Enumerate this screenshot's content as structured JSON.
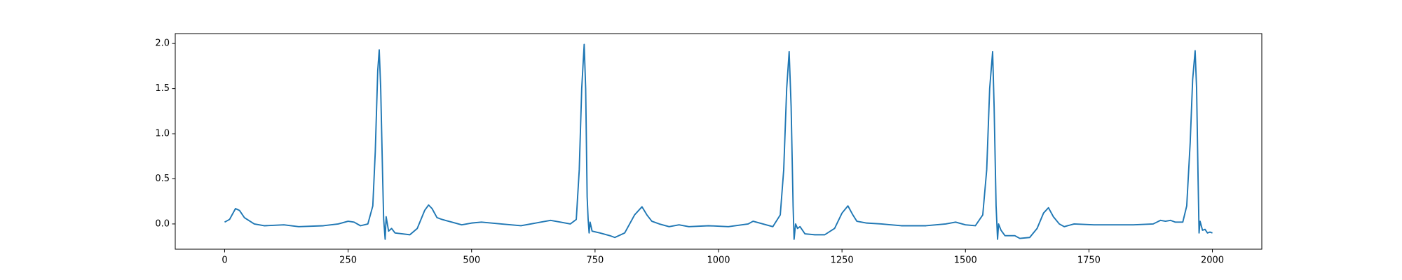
{
  "chart_data": {
    "type": "line",
    "color": "#1f77b4",
    "x": [
      0,
      10,
      22,
      30,
      40,
      60,
      80,
      120,
      150,
      200,
      230,
      250,
      262,
      275,
      290,
      300,
      305,
      310,
      313,
      316,
      320,
      322,
      325,
      327,
      332,
      338,
      345,
      360,
      375,
      390,
      405,
      413,
      420,
      430,
      440,
      460,
      480,
      500,
      520,
      560,
      600,
      640,
      660,
      680,
      700,
      712,
      718,
      723,
      728,
      731,
      734,
      736,
      738,
      740,
      744,
      760,
      780,
      790,
      810,
      830,
      845,
      855,
      865,
      880,
      900,
      920,
      940,
      980,
      1020,
      1060,
      1070,
      1090,
      1110,
      1125,
      1132,
      1138,
      1143,
      1147,
      1151,
      1153,
      1156,
      1160,
      1165,
      1175,
      1195,
      1215,
      1235,
      1250,
      1262,
      1272,
      1280,
      1300,
      1330,
      1370,
      1420,
      1460,
      1480,
      1500,
      1520,
      1535,
      1543,
      1549,
      1555,
      1558,
      1562,
      1565,
      1567,
      1572,
      1580,
      1600,
      1610,
      1630,
      1645,
      1658,
      1668,
      1678,
      1690,
      1700,
      1720,
      1760,
      1800,
      1840,
      1880,
      1895,
      1905,
      1915,
      1925,
      1940,
      1948,
      1955,
      1960,
      1965,
      1968,
      1971,
      1973,
      1975,
      1980,
      1985,
      1990,
      1995,
      2000
    ],
    "values": [
      0.02,
      0.05,
      0.17,
      0.15,
      0.07,
      0.0,
      -0.02,
      -0.01,
      -0.03,
      -0.02,
      0.0,
      0.03,
      0.02,
      -0.02,
      0.0,
      0.2,
      0.8,
      1.7,
      1.93,
      1.5,
      0.5,
      0.05,
      -0.17,
      0.08,
      -0.08,
      -0.05,
      -0.1,
      -0.11,
      -0.12,
      -0.05,
      0.15,
      0.21,
      0.17,
      0.07,
      0.05,
      0.02,
      -0.01,
      0.01,
      0.02,
      0.0,
      -0.02,
      0.02,
      0.04,
      0.02,
      0.0,
      0.05,
      0.6,
      1.5,
      1.99,
      1.5,
      0.3,
      0.05,
      -0.1,
      0.02,
      -0.08,
      -0.1,
      -0.13,
      -0.15,
      -0.1,
      0.1,
      0.19,
      0.1,
      0.03,
      0.0,
      -0.03,
      -0.01,
      -0.03,
      -0.02,
      -0.03,
      0.0,
      0.03,
      0.0,
      -0.03,
      0.1,
      0.6,
      1.5,
      1.91,
      1.3,
      0.2,
      -0.17,
      0.0,
      -0.05,
      -0.03,
      -0.11,
      -0.12,
      -0.12,
      -0.05,
      0.12,
      0.2,
      0.1,
      0.03,
      0.01,
      0.0,
      -0.02,
      -0.02,
      0.0,
      0.02,
      -0.01,
      -0.02,
      0.1,
      0.6,
      1.5,
      1.91,
      1.3,
      0.2,
      -0.17,
      0.0,
      -0.07,
      -0.13,
      -0.13,
      -0.16,
      -0.15,
      -0.05,
      0.12,
      0.18,
      0.08,
      0.0,
      -0.03,
      0.0,
      -0.01,
      -0.01,
      -0.01,
      0.0,
      0.04,
      0.03,
      0.04,
      0.02,
      0.02,
      0.2,
      0.9,
      1.6,
      1.92,
      1.5,
      0.5,
      -0.1,
      0.03,
      -0.07,
      -0.06,
      -0.1,
      -0.09,
      -0.1
    ],
    "xlim": [
      -100,
      2100
    ],
    "xticks": [
      0,
      250,
      500,
      750,
      1000,
      1250,
      1500,
      1750,
      2000
    ],
    "ylim": [
      -0.28,
      2.11
    ],
    "yticks": [
      {
        "value": 0,
        "label": "0.0"
      },
      0.5,
      {
        "value": 1,
        "label": "1.0"
      },
      1.5,
      {
        "value": 2,
        "label": "2.0"
      }
    ]
  }
}
